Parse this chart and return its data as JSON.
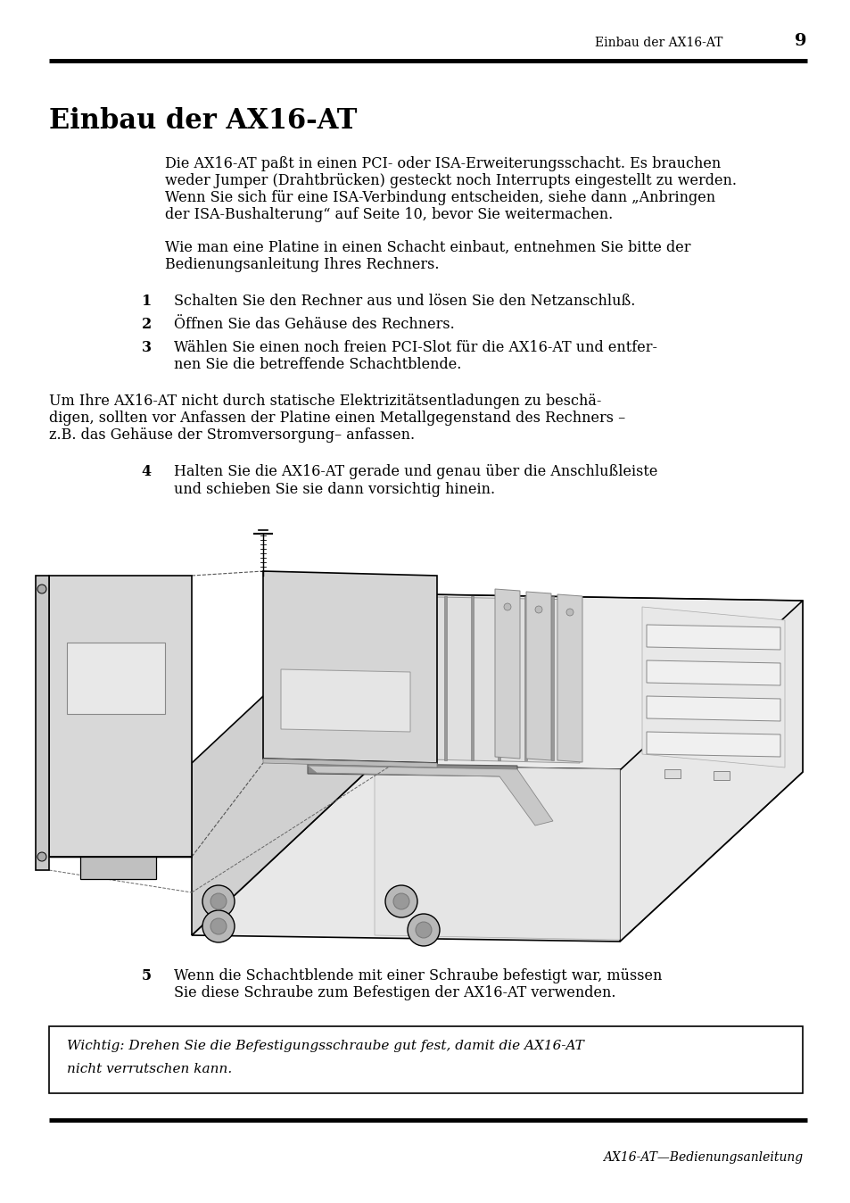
{
  "page_title_right": "Einbau der AX16-AT",
  "page_number": "9",
  "section_title": "Einbau der AX16-AT",
  "para1_lines": [
    "Die AX16-AT paßt in einen PCI- oder ISA-Erweiterungsschacht. Es brauchen",
    "weder Jumper (Drahtbrücken) gesteckt noch Interrupts eingestellt zu werden.",
    "Wenn Sie sich für eine ISA-Verbindung entscheiden, siehe dann „Anbringen",
    "der ISA-Bushalterung“ auf Seite 10, bevor Sie weitermachen."
  ],
  "para2_lines": [
    "Wie man eine Platine in einen Schacht einbaut, entnehmen Sie bitte der",
    "Bedienungsanleitung Ihres Rechners."
  ],
  "step1": "Schalten Sie den Rechner aus und lösen Sie den Netzanschluß.",
  "step2": "Öffnen Sie das Gehäuse des Rechners.",
  "step3_lines": [
    "Wählen Sie einen noch freien PCI-Slot für die AX16-AT und entfer-",
    "nen Sie die betreffende Schachtblende."
  ],
  "warning_lines": [
    "Um Ihre AX16-AT nicht durch statische Elektrizitätsentladungen zu beschä-",
    "digen, sollten vor Anfassen der Platine einen Metallgegenstand des Rechners –",
    "z.B. das Gehäuse der Stromversorgung– anfassen."
  ],
  "step4_lines": [
    "Halten Sie die AX16-AT gerade und genau über die Anschlußleiste",
    "und schieben Sie sie dann vorsichtig hinein."
  ],
  "step5_lines": [
    "Wenn die Schachtblende mit einer Schraube befestigt war, müssen",
    "Sie diese Schraube zum Befestigen der AX16-AT verwenden."
  ],
  "important_lines": [
    "Wichtig: Drehen Sie die Befestigungsschraube gut fest, damit die AX16-AT",
    "nicht verrutschen kann."
  ],
  "footer": "AX16-AT—Bedienungsanleitung",
  "bg_color": "#ffffff",
  "text_color": "#000000"
}
